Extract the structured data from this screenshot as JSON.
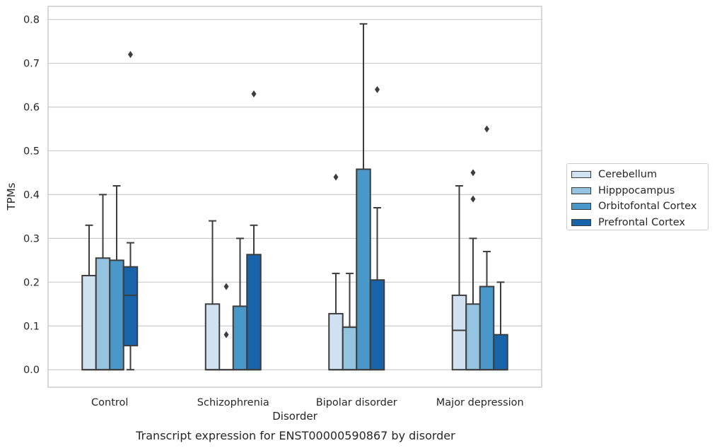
{
  "chart_data": {
    "type": "box",
    "xlabel": "Disorder",
    "ylabel": "TPMs",
    "caption": "Transcript expression for ENST00000590867 by disorder",
    "categories": [
      "Control",
      "Schizophrenia",
      "Bipolar disorder",
      "Major depression"
    ],
    "ylim": [
      -0.04,
      0.83
    ],
    "yticks": [
      "0.0",
      "0.1",
      "0.2",
      "0.3",
      "0.4",
      "0.5",
      "0.6",
      "0.7",
      "0.8"
    ],
    "grid": true,
    "legend_position": "right",
    "series": [
      {
        "name": "Cerebellum",
        "color": "#d0e1f2",
        "boxes": [
          {
            "q1": 0,
            "median": 0,
            "q3": 0.215,
            "whisker_low": 0,
            "whisker_high": 0.33,
            "outliers": []
          },
          {
            "q1": 0,
            "median": 0,
            "q3": 0.15,
            "whisker_low": 0,
            "whisker_high": 0.34,
            "outliers": []
          },
          {
            "q1": 0,
            "median": 0,
            "q3": 0.128,
            "whisker_low": 0,
            "whisker_high": 0.22,
            "outliers": [
              0.44
            ]
          },
          {
            "q1": 0,
            "median": 0.09,
            "q3": 0.17,
            "whisker_low": 0,
            "whisker_high": 0.42,
            "outliers": []
          }
        ]
      },
      {
        "name": "Hipppocampus",
        "color": "#94c4df",
        "boxes": [
          {
            "q1": 0,
            "median": 0,
            "q3": 0.255,
            "whisker_low": 0,
            "whisker_high": 0.4,
            "outliers": []
          },
          {
            "q1": 0,
            "median": 0,
            "q3": 0,
            "whisker_low": 0,
            "whisker_high": 0,
            "outliers": [
              0.08,
              0.19
            ]
          },
          {
            "q1": 0,
            "median": 0,
            "q3": 0.097,
            "whisker_low": 0,
            "whisker_high": 0.22,
            "outliers": []
          },
          {
            "q1": 0,
            "median": 0,
            "q3": 0.15,
            "whisker_low": 0,
            "whisker_high": 0.3,
            "outliers": [
              0.39,
              0.45
            ]
          }
        ]
      },
      {
        "name": "Orbitofontal Cortex",
        "color": "#4a98c9",
        "boxes": [
          {
            "q1": 0,
            "median": 0,
            "q3": 0.25,
            "whisker_low": 0,
            "whisker_high": 0.42,
            "outliers": []
          },
          {
            "q1": 0,
            "median": 0,
            "q3": 0.145,
            "whisker_low": 0,
            "whisker_high": 0.3,
            "outliers": []
          },
          {
            "q1": 0,
            "median": 0,
            "q3": 0.458,
            "whisker_low": 0,
            "whisker_high": 0.79,
            "outliers": []
          },
          {
            "q1": 0,
            "median": 0,
            "q3": 0.19,
            "whisker_low": 0,
            "whisker_high": 0.27,
            "outliers": [
              0.55
            ]
          }
        ]
      },
      {
        "name": "Prefrontal Cortex",
        "color": "#1764ab",
        "boxes": [
          {
            "q1": 0.055,
            "median": 0.17,
            "q3": 0.235,
            "whisker_low": 0,
            "whisker_high": 0.29,
            "outliers": [
              0.72
            ]
          },
          {
            "q1": 0,
            "median": 0,
            "q3": 0.263,
            "whisker_low": 0,
            "whisker_high": 0.33,
            "outliers": [
              0.63
            ]
          },
          {
            "q1": 0,
            "median": 0,
            "q3": 0.205,
            "whisker_low": 0,
            "whisker_high": 0.37,
            "outliers": [
              0.64
            ]
          },
          {
            "q1": 0,
            "median": 0,
            "q3": 0.08,
            "whisker_low": 0,
            "whisker_high": 0.2,
            "outliers": []
          }
        ]
      }
    ]
  }
}
